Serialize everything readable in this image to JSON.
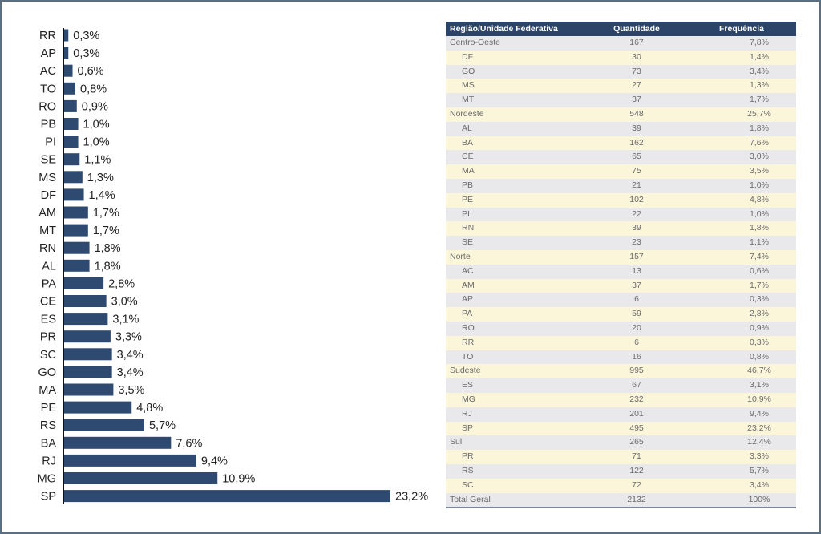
{
  "chart_data": {
    "type": "bar",
    "orientation": "horizontal",
    "title": "",
    "xlabel": "",
    "ylabel": "",
    "categories": [
      "RR",
      "AP",
      "AC",
      "TO",
      "RO",
      "PB",
      "PI",
      "SE",
      "MS",
      "DF",
      "AM",
      "MT",
      "RN",
      "AL",
      "PA",
      "CE",
      "ES",
      "PR",
      "SC",
      "GO",
      "MA",
      "PE",
      "RS",
      "BA",
      "RJ",
      "MG",
      "SP"
    ],
    "values": [
      0.3,
      0.3,
      0.6,
      0.8,
      0.9,
      1.0,
      1.0,
      1.1,
      1.3,
      1.4,
      1.7,
      1.7,
      1.8,
      1.8,
      2.8,
      3.0,
      3.1,
      3.3,
      3.4,
      3.4,
      3.5,
      4.8,
      5.7,
      7.6,
      9.4,
      10.9,
      23.2
    ],
    "value_labels": [
      "0,3%",
      "0,3%",
      "0,6%",
      "0,8%",
      "0,9%",
      "1,0%",
      "1,0%",
      "1,1%",
      "1,3%",
      "1,4%",
      "1,7%",
      "1,7%",
      "1,8%",
      "1,8%",
      "2,8%",
      "3,0%",
      "3,1%",
      "3,3%",
      "3,4%",
      "3,4%",
      "3,5%",
      "4,8%",
      "5,7%",
      "7,6%",
      "9,4%",
      "10,9%",
      "23,2%"
    ],
    "xlim": [
      0,
      23.2
    ],
    "grid": false,
    "legend": "none",
    "bar_color": "#2e4a70"
  },
  "table": {
    "headers": [
      "Região/Unidade Federativa",
      "Quantidade",
      "Frequência"
    ],
    "rows": [
      {
        "name": "Centro-Oeste",
        "qty": "167",
        "freq": "7,8%",
        "level": "region"
      },
      {
        "name": "DF",
        "qty": "30",
        "freq": "1,4%",
        "level": "state"
      },
      {
        "name": "GO",
        "qty": "73",
        "freq": "3,4%",
        "level": "state"
      },
      {
        "name": "MS",
        "qty": "27",
        "freq": "1,3%",
        "level": "state"
      },
      {
        "name": "MT",
        "qty": "37",
        "freq": "1,7%",
        "level": "state"
      },
      {
        "name": "Nordeste",
        "qty": "548",
        "freq": "25,7%",
        "level": "region"
      },
      {
        "name": "AL",
        "qty": "39",
        "freq": "1,8%",
        "level": "state"
      },
      {
        "name": "BA",
        "qty": "162",
        "freq": "7,6%",
        "level": "state"
      },
      {
        "name": "CE",
        "qty": "65",
        "freq": "3,0%",
        "level": "state"
      },
      {
        "name": "MA",
        "qty": "75",
        "freq": "3,5%",
        "level": "state"
      },
      {
        "name": "PB",
        "qty": "21",
        "freq": "1,0%",
        "level": "state"
      },
      {
        "name": "PE",
        "qty": "102",
        "freq": "4,8%",
        "level": "state"
      },
      {
        "name": "PI",
        "qty": "22",
        "freq": "1,0%",
        "level": "state"
      },
      {
        "name": "RN",
        "qty": "39",
        "freq": "1,8%",
        "level": "state"
      },
      {
        "name": "SE",
        "qty": "23",
        "freq": "1,1%",
        "level": "state"
      },
      {
        "name": "Norte",
        "qty": "157",
        "freq": "7,4%",
        "level": "region"
      },
      {
        "name": "AC",
        "qty": "13",
        "freq": "0,6%",
        "level": "state"
      },
      {
        "name": "AM",
        "qty": "37",
        "freq": "1,7%",
        "level": "state"
      },
      {
        "name": "AP",
        "qty": "6",
        "freq": "0,3%",
        "level": "state"
      },
      {
        "name": "PA",
        "qty": "59",
        "freq": "2,8%",
        "level": "state"
      },
      {
        "name": "RO",
        "qty": "20",
        "freq": "0,9%",
        "level": "state"
      },
      {
        "name": "RR",
        "qty": "6",
        "freq": "0,3%",
        "level": "state"
      },
      {
        "name": "TO",
        "qty": "16",
        "freq": "0,8%",
        "level": "state"
      },
      {
        "name": "Sudeste",
        "qty": "995",
        "freq": "46,7%",
        "level": "region"
      },
      {
        "name": "ES",
        "qty": "67",
        "freq": "3,1%",
        "level": "state"
      },
      {
        "name": "MG",
        "qty": "232",
        "freq": "10,9%",
        "level": "state"
      },
      {
        "name": "RJ",
        "qty": "201",
        "freq": "9,4%",
        "level": "state"
      },
      {
        "name": "SP",
        "qty": "495",
        "freq": "23,2%",
        "level": "state"
      },
      {
        "name": "Sul",
        "qty": "265",
        "freq": "12,4%",
        "level": "region"
      },
      {
        "name": "PR",
        "qty": "71",
        "freq": "3,3%",
        "level": "state"
      },
      {
        "name": "RS",
        "qty": "122",
        "freq": "5,7%",
        "level": "state"
      },
      {
        "name": "SC",
        "qty": "72",
        "freq": "3,4%",
        "level": "state"
      },
      {
        "name": "Total Geral",
        "qty": "2132",
        "freq": "100%",
        "level": "total"
      }
    ]
  }
}
